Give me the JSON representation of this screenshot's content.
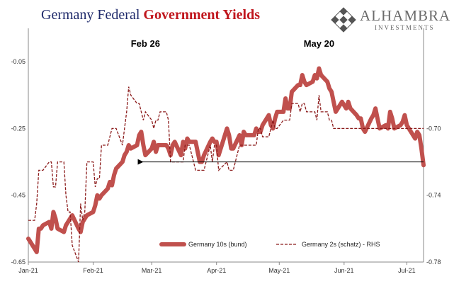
{
  "title": {
    "part1": "Germany Federal ",
    "part2": "Government Yields"
  },
  "logo": {
    "name": "ALHAMBRA",
    "sub": "INVESTMENTS"
  },
  "chart_data": {
    "type": "line",
    "title": "Germany Federal Government Yields",
    "x_tick_labels": [
      "Jan-21",
      "Feb-21",
      "Mar-21",
      "Apr-21",
      "May-21",
      "Jun-21",
      "Jul-21"
    ],
    "x_range": [
      "2021-01-01",
      "2021-07-09"
    ],
    "y_left": {
      "ticks": [
        -0.05,
        -0.25,
        -0.45,
        -0.65
      ],
      "tick_labels": [
        "-0.05",
        "-0.25",
        "-0.45",
        "-0.65"
      ],
      "range": [
        -0.65,
        0.05
      ]
    },
    "y_right": {
      "ticks": [
        -0.7,
        -0.74,
        -0.78
      ],
      "tick_labels": [
        "-0.70",
        "-0.74",
        "-0.78"
      ],
      "range": [
        -0.78,
        -0.64
      ]
    },
    "grid": false,
    "legend_position": "bottom",
    "series": [
      {
        "name": "Germany 10s (bund)",
        "axis": "left",
        "color": "#c0504d",
        "style": "solid-thick",
        "x": [
          "2021-01-01",
          "2021-01-04",
          "2021-01-05",
          "2021-01-06",
          "2021-01-07",
          "2021-01-08",
          "2021-01-11",
          "2021-01-12",
          "2021-01-13",
          "2021-01-14",
          "2021-01-15",
          "2021-01-18",
          "2021-01-19",
          "2021-01-20",
          "2021-01-21",
          "2021-01-22",
          "2021-01-25",
          "2021-01-26",
          "2021-01-27",
          "2021-01-28",
          "2021-01-29",
          "2021-02-01",
          "2021-02-02",
          "2021-02-03",
          "2021-02-04",
          "2021-02-05",
          "2021-02-08",
          "2021-02-09",
          "2021-02-10",
          "2021-02-11",
          "2021-02-12",
          "2021-02-15",
          "2021-02-16",
          "2021-02-17",
          "2021-02-18",
          "2021-02-19",
          "2021-02-22",
          "2021-02-23",
          "2021-02-24",
          "2021-02-25",
          "2021-02-26",
          "2021-03-01",
          "2021-03-02",
          "2021-03-03",
          "2021-03-04",
          "2021-03-05",
          "2021-03-08",
          "2021-03-09",
          "2021-03-10",
          "2021-03-11",
          "2021-03-12",
          "2021-03-15",
          "2021-03-16",
          "2021-03-17",
          "2021-03-18",
          "2021-03-19",
          "2021-03-22",
          "2021-03-23",
          "2021-03-24",
          "2021-03-25",
          "2021-03-26",
          "2021-03-29",
          "2021-03-30",
          "2021-03-31",
          "2021-04-01",
          "2021-04-02",
          "2021-04-06",
          "2021-04-07",
          "2021-04-08",
          "2021-04-09",
          "2021-04-12",
          "2021-04-13",
          "2021-04-14",
          "2021-04-15",
          "2021-04-16",
          "2021-04-19",
          "2021-04-20",
          "2021-04-21",
          "2021-04-22",
          "2021-04-23",
          "2021-04-26",
          "2021-04-27",
          "2021-04-28",
          "2021-04-29",
          "2021-04-30",
          "2021-05-03",
          "2021-05-04",
          "2021-05-05",
          "2021-05-06",
          "2021-05-07",
          "2021-05-10",
          "2021-05-11",
          "2021-05-12",
          "2021-05-13",
          "2021-05-14",
          "2021-05-17",
          "2021-05-18",
          "2021-05-19",
          "2021-05-20",
          "2021-05-21",
          "2021-05-24",
          "2021-05-25",
          "2021-05-26",
          "2021-05-27",
          "2021-05-28",
          "2021-05-31",
          "2021-06-01",
          "2021-06-02",
          "2021-06-03",
          "2021-06-04",
          "2021-06-07",
          "2021-06-08",
          "2021-06-09",
          "2021-06-10",
          "2021-06-11",
          "2021-06-14",
          "2021-06-15",
          "2021-06-16",
          "2021-06-17",
          "2021-06-18",
          "2021-06-21",
          "2021-06-22",
          "2021-06-23",
          "2021-06-24",
          "2021-06-25",
          "2021-06-28",
          "2021-06-29",
          "2021-06-30",
          "2021-07-01",
          "2021-07-02",
          "2021-07-05",
          "2021-07-06",
          "2021-07-07",
          "2021-07-08",
          "2021-07-09"
        ],
        "y": [
          -0.58,
          -0.61,
          -0.62,
          -0.55,
          -0.55,
          -0.54,
          -0.53,
          -0.55,
          -0.5,
          -0.52,
          -0.55,
          -0.56,
          -0.54,
          -0.53,
          -0.52,
          -0.51,
          -0.55,
          -0.56,
          -0.53,
          -0.52,
          -0.51,
          -0.5,
          -0.48,
          -0.45,
          -0.46,
          -0.45,
          -0.43,
          -0.41,
          -0.42,
          -0.39,
          -0.37,
          -0.35,
          -0.33,
          -0.32,
          -0.3,
          -0.31,
          -0.3,
          -0.27,
          -0.26,
          -0.3,
          -0.33,
          -0.31,
          -0.29,
          -0.32,
          -0.3,
          -0.3,
          -0.3,
          -0.31,
          -0.33,
          -0.3,
          -0.29,
          -0.33,
          -0.29,
          -0.31,
          -0.28,
          -0.29,
          -0.29,
          -0.32,
          -0.35,
          -0.35,
          -0.33,
          -0.29,
          -0.28,
          -0.29,
          -0.29,
          -0.33,
          -0.25,
          -0.27,
          -0.31,
          -0.31,
          -0.27,
          -0.3,
          -0.26,
          -0.27,
          -0.27,
          -0.27,
          -0.25,
          -0.26,
          -0.26,
          -0.24,
          -0.21,
          -0.24,
          -0.25,
          -0.22,
          -0.2,
          -0.2,
          -0.16,
          -0.19,
          -0.19,
          -0.14,
          -0.12,
          -0.12,
          -0.09,
          -0.11,
          -0.12,
          -0.11,
          -0.09,
          -0.1,
          -0.07,
          -0.09,
          -0.11,
          -0.13,
          -0.14,
          -0.17,
          -0.2,
          -0.17,
          -0.18,
          -0.19,
          -0.17,
          -0.19,
          -0.21,
          -0.22,
          -0.22,
          -0.25,
          -0.26,
          -0.22,
          -0.21,
          -0.19,
          -0.22,
          -0.25,
          -0.24,
          -0.25,
          -0.2,
          -0.22,
          -0.25,
          -0.24,
          -0.23,
          -0.21,
          -0.24,
          -0.25,
          -0.28,
          -0.26,
          -0.27,
          -0.31,
          -0.36
        ]
      },
      {
        "name": "Germany 2s (schatz) - RHS",
        "axis": "right",
        "color": "#8b1a1a",
        "style": "dashed",
        "x": [
          "2021-01-01",
          "2021-01-04",
          "2021-01-05",
          "2021-01-06",
          "2021-01-07",
          "2021-01-08",
          "2021-01-11",
          "2021-01-12",
          "2021-01-13",
          "2021-01-14",
          "2021-01-15",
          "2021-01-18",
          "2021-01-19",
          "2021-01-20",
          "2021-01-21",
          "2021-01-22",
          "2021-01-25",
          "2021-01-26",
          "2021-01-27",
          "2021-01-28",
          "2021-01-29",
          "2021-02-01",
          "2021-02-02",
          "2021-02-03",
          "2021-02-04",
          "2021-02-05",
          "2021-02-08",
          "2021-02-09",
          "2021-02-10",
          "2021-02-11",
          "2021-02-12",
          "2021-02-15",
          "2021-02-16",
          "2021-02-17",
          "2021-02-18",
          "2021-02-19",
          "2021-02-22",
          "2021-02-23",
          "2021-02-24",
          "2021-02-25",
          "2021-02-26",
          "2021-03-01",
          "2021-03-02",
          "2021-03-03",
          "2021-03-04",
          "2021-03-05",
          "2021-03-08",
          "2021-03-09",
          "2021-03-10",
          "2021-03-11",
          "2021-03-12",
          "2021-03-15",
          "2021-03-16",
          "2021-03-17",
          "2021-03-18",
          "2021-03-19",
          "2021-03-22",
          "2021-03-23",
          "2021-03-24",
          "2021-03-25",
          "2021-03-26",
          "2021-03-29",
          "2021-03-30",
          "2021-03-31",
          "2021-04-01",
          "2021-04-02",
          "2021-04-06",
          "2021-04-07",
          "2021-04-08",
          "2021-04-09",
          "2021-04-12",
          "2021-04-13",
          "2021-04-14",
          "2021-04-15",
          "2021-04-16",
          "2021-04-19",
          "2021-04-20",
          "2021-04-21",
          "2021-04-22",
          "2021-04-23",
          "2021-04-26",
          "2021-04-27",
          "2021-04-28",
          "2021-04-29",
          "2021-04-30",
          "2021-05-03",
          "2021-05-04",
          "2021-05-05",
          "2021-05-06",
          "2021-05-07",
          "2021-05-10",
          "2021-05-11",
          "2021-05-12",
          "2021-05-13",
          "2021-05-14",
          "2021-05-17",
          "2021-05-18",
          "2021-05-19",
          "2021-05-20",
          "2021-05-21",
          "2021-05-24",
          "2021-05-25",
          "2021-05-26",
          "2021-05-27",
          "2021-05-28",
          "2021-05-31",
          "2021-06-01",
          "2021-06-02",
          "2021-06-03",
          "2021-06-04",
          "2021-06-07",
          "2021-06-08",
          "2021-06-09",
          "2021-06-10",
          "2021-06-11",
          "2021-06-14",
          "2021-06-15",
          "2021-06-16",
          "2021-06-17",
          "2021-06-18",
          "2021-06-21",
          "2021-06-22",
          "2021-06-23",
          "2021-06-24",
          "2021-06-25",
          "2021-06-28",
          "2021-06-29",
          "2021-06-30",
          "2021-07-01",
          "2021-07-02",
          "2021-07-05",
          "2021-07-06",
          "2021-07-07",
          "2021-07-08",
          "2021-07-09"
        ],
        "y": [
          -0.755,
          -0.755,
          -0.745,
          -0.725,
          -0.725,
          -0.725,
          -0.72,
          -0.72,
          -0.735,
          -0.735,
          -0.72,
          -0.72,
          -0.74,
          -0.75,
          -0.75,
          -0.77,
          -0.78,
          -0.745,
          -0.755,
          -0.75,
          -0.72,
          -0.72,
          -0.735,
          -0.73,
          -0.73,
          -0.71,
          -0.71,
          -0.705,
          -0.7,
          -0.7,
          -0.7,
          -0.71,
          -0.7,
          -0.69,
          -0.675,
          -0.68,
          -0.685,
          -0.685,
          -0.69,
          -0.695,
          -0.69,
          -0.695,
          -0.7,
          -0.695,
          -0.695,
          -0.69,
          -0.69,
          -0.695,
          -0.72,
          -0.72,
          -0.72,
          -0.72,
          -0.72,
          -0.71,
          -0.71,
          -0.71,
          -0.725,
          -0.725,
          -0.725,
          -0.725,
          -0.725,
          -0.71,
          -0.72,
          -0.71,
          -0.71,
          -0.725,
          -0.72,
          -0.725,
          -0.725,
          -0.725,
          -0.71,
          -0.71,
          -0.71,
          -0.71,
          -0.71,
          -0.71,
          -0.71,
          -0.7,
          -0.7,
          -0.705,
          -0.705,
          -0.7,
          -0.695,
          -0.7,
          -0.7,
          -0.695,
          -0.695,
          -0.695,
          -0.695,
          -0.685,
          -0.685,
          -0.69,
          -0.685,
          -0.685,
          -0.69,
          -0.69,
          -0.69,
          -0.695,
          -0.68,
          -0.69,
          -0.69,
          -0.695,
          -0.695,
          -0.7,
          -0.7,
          -0.7,
          -0.7,
          -0.7,
          -0.7,
          -0.7,
          -0.7,
          -0.7,
          -0.7,
          -0.7,
          -0.7,
          -0.7,
          -0.7,
          -0.7,
          -0.7,
          -0.7,
          -0.7,
          -0.7,
          -0.7,
          -0.7,
          -0.7,
          -0.7,
          -0.7,
          -0.7,
          -0.7,
          -0.7,
          -0.7,
          -0.7,
          -0.7,
          -0.7,
          -0.7
        ]
      }
    ],
    "annotations": [
      {
        "text": "Feb 26",
        "x": "2021-02-26"
      },
      {
        "text": "May 20",
        "x": "2021-05-20"
      }
    ],
    "reference_arrow": {
      "y": -0.35,
      "from_x": "2021-07-09",
      "to_x": "2021-02-22"
    }
  }
}
